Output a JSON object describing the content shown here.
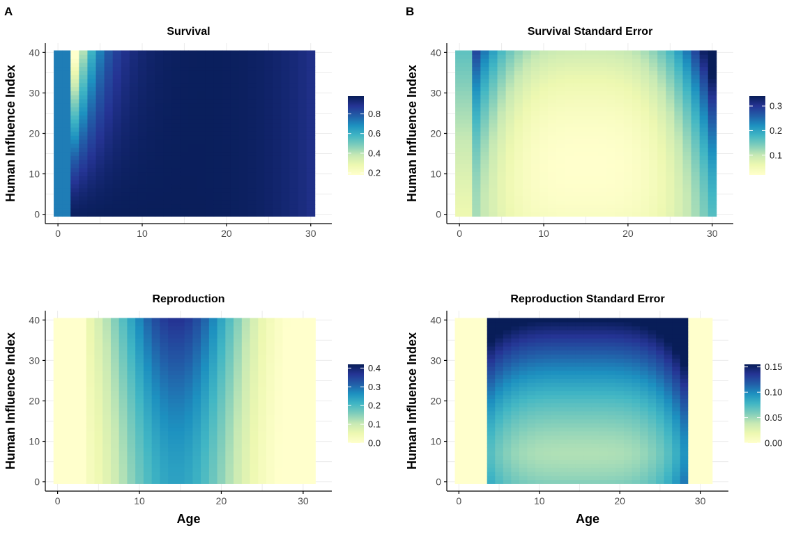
{
  "panel_letters": [
    "A",
    "B"
  ],
  "palette": [
    "#ffffcc",
    "#edf8b1",
    "#c7e9b4",
    "#7fcdbb",
    "#41b6c4",
    "#1d91c0",
    "#225ea8",
    "#253494",
    "#081d58"
  ],
  "chart_data": [
    {
      "type": "heatmap",
      "panel": "A",
      "title": "Survival",
      "xlabel": "",
      "ylabel": "Human Influence Index",
      "x_ticks": [
        0,
        10,
        20,
        30
      ],
      "y_ticks": [
        0,
        10,
        20,
        30,
        40
      ],
      "xlim": [
        -1.5,
        32.5
      ],
      "ylim": [
        -2.3,
        42.3
      ],
      "x": {
        "start": 0,
        "end": 30,
        "step": 1
      },
      "y": {
        "start": 0,
        "end": 40,
        "step": 1
      },
      "model": "survival",
      "legend": {
        "ticks": [
          0.2,
          0.4,
          0.6,
          0.8
        ],
        "min": 0.18,
        "max": 0.98,
        "position": "right"
      }
    },
    {
      "type": "heatmap",
      "panel": "B",
      "title": "Survival Standard Error",
      "xlabel": "",
      "ylabel": "Human Influence Index",
      "x_ticks": [
        0,
        10,
        20,
        30
      ],
      "y_ticks": [
        0,
        10,
        20,
        30,
        40
      ],
      "xlim": [
        -1.5,
        32.5
      ],
      "ylim": [
        -2.3,
        42.3
      ],
      "x": {
        "start": 0,
        "end": 30,
        "step": 1
      },
      "y": {
        "start": 0,
        "end": 40,
        "step": 1
      },
      "model": "survival_se",
      "legend": {
        "ticks": [
          0.1,
          0.2,
          0.3
        ],
        "min": 0.02,
        "max": 0.34,
        "position": "right"
      }
    },
    {
      "type": "heatmap",
      "panel": "",
      "title": "Reproduction",
      "xlabel": "Age",
      "ylabel": "Human Influence Index",
      "x_ticks": [
        0,
        10,
        20,
        30
      ],
      "y_ticks": [
        0,
        10,
        20,
        30,
        40
      ],
      "xlim": [
        -1.5,
        33.5
      ],
      "ylim": [
        -2.3,
        42.3
      ],
      "x": {
        "start": 0,
        "end": 31,
        "step": 1
      },
      "y": {
        "start": 0,
        "end": 40,
        "step": 1
      },
      "model": "reproduction",
      "legend": {
        "ticks": [
          0.0,
          0.1,
          0.2,
          0.3,
          0.4
        ],
        "min": 0.0,
        "max": 0.42,
        "position": "right"
      }
    },
    {
      "type": "heatmap",
      "panel": "",
      "title": "Reproduction Standard Error",
      "xlabel": "Age",
      "ylabel": "Human Influence Index",
      "x_ticks": [
        0,
        10,
        20,
        30
      ],
      "y_ticks": [
        0,
        10,
        20,
        30,
        40
      ],
      "xlim": [
        -1.5,
        33.5
      ],
      "ylim": [
        -2.3,
        42.3
      ],
      "x": {
        "start": 0,
        "end": 31,
        "step": 1
      },
      "y": {
        "start": 0,
        "end": 40,
        "step": 1
      },
      "model": "reproduction_se",
      "legend": {
        "ticks": [
          0.0,
          0.05,
          0.1,
          0.15
        ],
        "min": 0.0,
        "max": 0.155,
        "position": "right"
      }
    }
  ]
}
